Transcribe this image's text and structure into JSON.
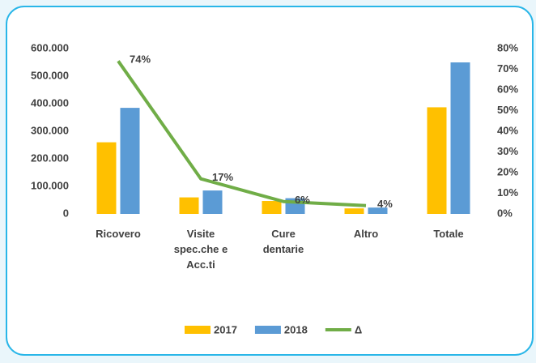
{
  "chart_data": {
    "type": "bar",
    "categories": [
      "Ricovero",
      "Visite spec.che e Acc.ti",
      "Cure dentarie",
      "Altro",
      "Totale"
    ],
    "series": [
      {
        "name": "2017",
        "color": "#ffc000",
        "values": [
          260000,
          60000,
          47000,
          20000,
          387000
        ]
      },
      {
        "name": "2018",
        "color": "#5b9bd5",
        "values": [
          385000,
          85000,
          57000,
          23000,
          550000
        ]
      },
      {
        "name": "Δ",
        "type": "line",
        "axis": "y2",
        "color": "#70ad47",
        "values": [
          74,
          17,
          6,
          4,
          null
        ],
        "value_labels": [
          "74%",
          "17%",
          "6%",
          "4%",
          null
        ]
      }
    ],
    "ylim": [
      0,
      600000
    ],
    "yticks": [
      0,
      {
        "value": 100000,
        "label": "100.000"
      },
      {
        "value": 200000,
        "label": "200.000"
      },
      {
        "value": 300000,
        "label": "300.000"
      },
      {
        "value": 400000,
        "label": "400.000"
      },
      {
        "value": 500000,
        "label": "500.000"
      },
      {
        "value": 600000,
        "label": "600.000"
      }
    ],
    "y2lim": [
      0,
      80
    ],
    "y2ticks": [
      {
        "value": 0,
        "label": "0%"
      },
      {
        "value": 10,
        "label": "10%"
      },
      {
        "value": 20,
        "label": "20%"
      },
      {
        "value": 30,
        "label": "30%"
      },
      {
        "value": 40,
        "label": "40%"
      },
      {
        "value": 50,
        "label": "50%"
      },
      {
        "value": 60,
        "label": "60%"
      },
      {
        "value": 70,
        "label": "70%"
      },
      {
        "value": 80,
        "label": "80%"
      }
    ],
    "grid": false,
    "legend": "bottom"
  }
}
